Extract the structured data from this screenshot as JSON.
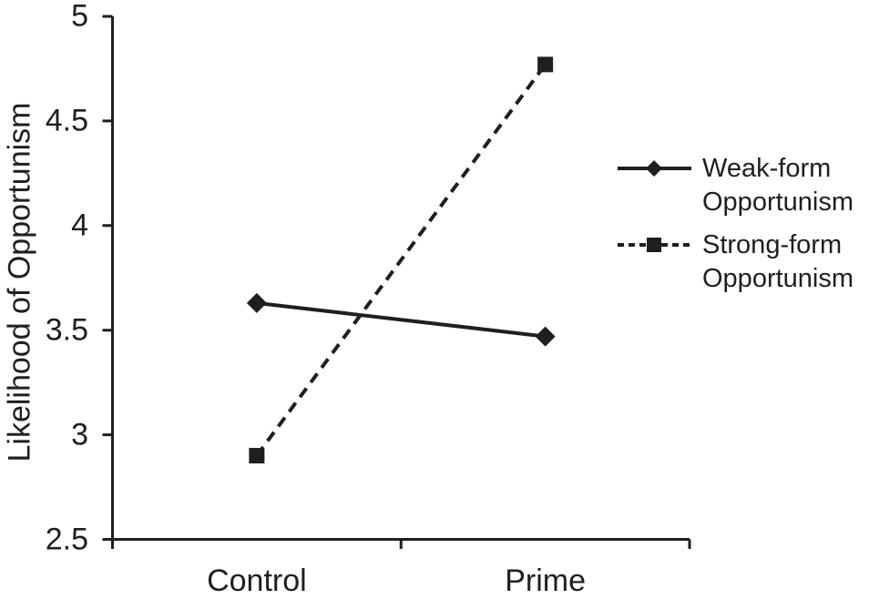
{
  "chart_data": {
    "type": "line",
    "title": "",
    "xlabel": "",
    "ylabel": "Likelihood of Opportunism",
    "categories": [
      "Control",
      "Prime"
    ],
    "series": [
      {
        "name": "Weak-form Opportunism",
        "values": [
          3.63,
          3.47
        ],
        "marker": "diamond",
        "line_style": "solid"
      },
      {
        "name": "Strong-form Opportunism",
        "values": [
          2.9,
          4.77
        ],
        "marker": "square",
        "line_style": "dashed"
      }
    ],
    "ylim": [
      2.5,
      5
    ],
    "ytick_labels": [
      "5",
      "4.5",
      "4",
      "3.5",
      "3",
      "2.5"
    ],
    "ytick_values": [
      5,
      4.5,
      4,
      3.5,
      3,
      2.5
    ],
    "grid": false,
    "legend_position": "right",
    "ink_color": "#1f1f1f",
    "background_color": "#ffffff"
  }
}
